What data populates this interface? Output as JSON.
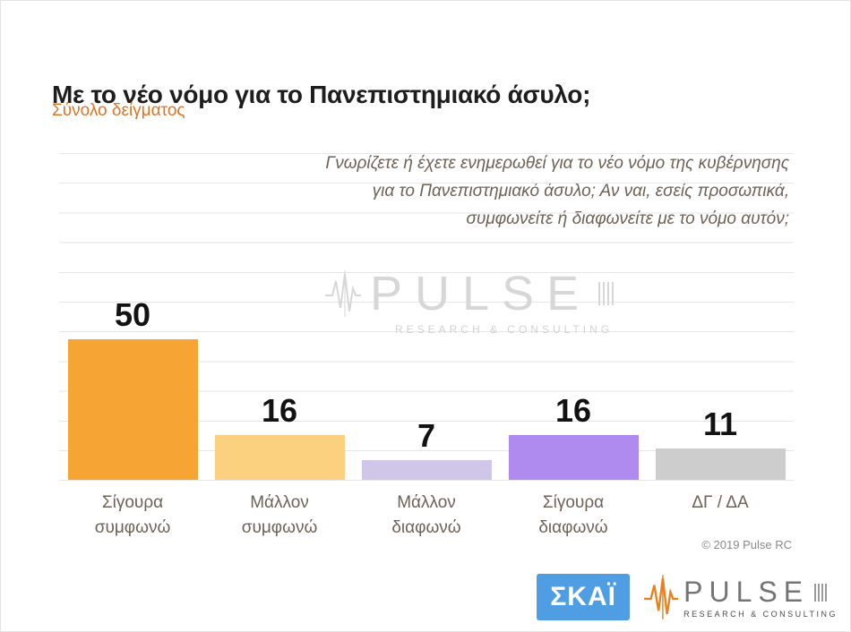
{
  "header": {
    "title": "Με το νέο νόμο για το Πανεπιστημιακό άσυλο;",
    "subtitle": "Σύνολο δείγματος"
  },
  "question": {
    "lines": [
      "Γνωρίζετε ή έχετε ενημερωθεί για το νέο νόμο της κυβέρνησης",
      "για το Πανεπιστημιακό άσυλο; Αν ναι, εσείς προσωπικά,",
      "συμφωνείτε ή διαφωνείτε με το νόμο αυτόν;"
    ]
  },
  "chart_data": {
    "type": "bar",
    "title": "Με το νέο νόμο για το Πανεπιστημιακό άσυλο;",
    "subtitle": "Σύνολο δείγματος",
    "categories": [
      "Σίγουρα συμφωνώ",
      "Μάλλον συμφωνώ",
      "Μάλλον διαφωνώ",
      "Σίγουρα διαφωνώ",
      "ΔΓ / ΔΑ"
    ],
    "values": [
      50,
      16,
      7,
      16,
      11
    ],
    "colors": [
      "#F6A433",
      "#FBD180",
      "#CFC6E9",
      "#AF8BEF",
      "#CDCDCD"
    ],
    "xlabel": "",
    "ylabel": "",
    "ylim": [
      0,
      55
    ],
    "grid": true,
    "legend_position": "none",
    "value_labels": "above-bars"
  },
  "watermark": {
    "brand": "PULSE",
    "tagline": "RESEARCH & CONSULTING"
  },
  "footer": {
    "copyright": "© 2019 Pulse RC",
    "skai_logo_text": "ΣΚΑΪ",
    "pulse_logo": {
      "brand": "PULSE",
      "tagline": "RESEARCH & CONSULTING"
    }
  },
  "colors": {
    "accent_orange": "#DE7425",
    "skai_blue": "#4F9EE3",
    "pulse_orange": "#E8821E"
  }
}
